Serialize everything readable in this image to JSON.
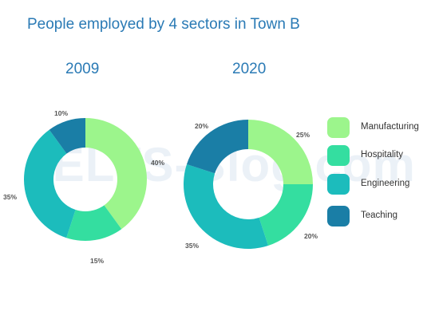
{
  "title": "People employed by 4 sectors in Town B",
  "watermark": "IELTS-Blog.com",
  "colors": {
    "Manufacturing": "#9cf58c",
    "Hospitality": "#34dea0",
    "Engineering": "#1cbcbc",
    "Teaching": "#1a7ea6",
    "title": "#2a7ab5"
  },
  "chart_data": [
    {
      "type": "pie",
      "style": "donut",
      "title": "2009",
      "categories": [
        "Manufacturing",
        "Hospitality",
        "Engineering",
        "Teaching"
      ],
      "values": [
        40,
        15,
        35,
        10
      ],
      "labels": [
        "40%",
        "15%",
        "35%",
        "10%"
      ]
    },
    {
      "type": "pie",
      "style": "donut",
      "title": "2020",
      "categories": [
        "Manufacturing",
        "Hospitality",
        "Engineering",
        "Teaching"
      ],
      "values": [
        25,
        20,
        35,
        20
      ],
      "labels": [
        "25%",
        "20%",
        "35%",
        "20%"
      ]
    }
  ],
  "legend": {
    "position": "right",
    "items": [
      "Manufacturing",
      "Hospitality",
      "Engineering",
      "Teaching"
    ]
  }
}
